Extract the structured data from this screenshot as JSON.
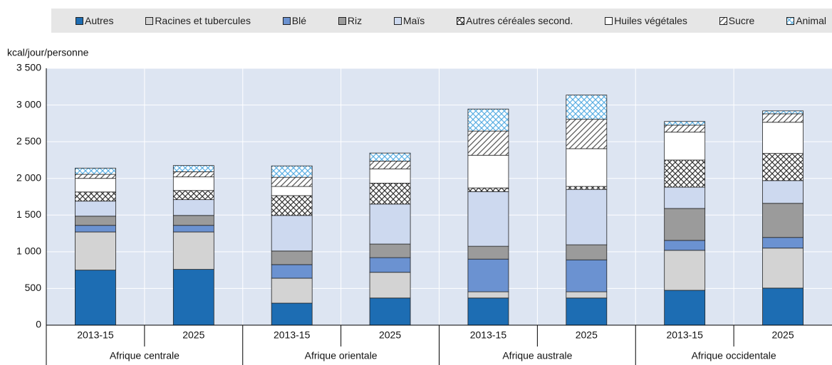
{
  "chart_data": {
    "type": "stacked_bar",
    "y_label": "kcal/jour/personne",
    "categories": [
      "2013-15",
      "2025",
      "2013-15",
      "2025",
      "2013-15",
      "2025",
      "2013-15",
      "2025"
    ],
    "groups": [
      "Afrique centrale",
      "Afrique orientale",
      "Afrique australe",
      "Afrique occidentale"
    ],
    "ylim": [
      0,
      3500
    ],
    "yticks": [
      0,
      500,
      {
        "value": 1000,
        "label": "1 000"
      },
      {
        "value": 1500,
        "label": "1 500"
      },
      {
        "value": 2000,
        "label": "2 000"
      },
      {
        "value": 2500,
        "label": "2 500"
      },
      {
        "value": 3000,
        "label": "3 000"
      },
      {
        "value": 3500,
        "label": "3 500"
      }
    ],
    "grid": true,
    "legend": "top",
    "series": [
      {
        "name": "Autres",
        "color": "#1d6db3",
        "values": [
          750,
          760,
          300,
          370,
          370,
          370,
          475,
          505
        ]
      },
      {
        "name": "Racines et tubercules",
        "color": "#d3d3d3",
        "values": [
          520,
          510,
          340,
          350,
          85,
          85,
          545,
          545
        ]
      },
      {
        "name": "Blé",
        "color": "#6b92d1",
        "values": [
          90,
          90,
          185,
          200,
          445,
          435,
          135,
          145
        ]
      },
      {
        "name": "Riz",
        "color": "#9b9b9b",
        "values": [
          125,
          135,
          185,
          185,
          175,
          205,
          435,
          465
        ]
      },
      {
        "name": "Maïs",
        "color": "#cdd9ef",
        "values": [
          205,
          215,
          485,
          545,
          745,
          755,
          290,
          310
        ]
      },
      {
        "name": "Autres céréales second.",
        "color": "#333333",
        "pattern": "crosshatch",
        "values": [
          125,
          125,
          270,
          285,
          50,
          40,
          370,
          370
        ]
      },
      {
        "name": "Huiles végétales",
        "color": "#ffffff",
        "values": [
          185,
          185,
          125,
          195,
          445,
          515,
          380,
          425
        ]
      },
      {
        "name": "Sucre",
        "color": "#555555",
        "pattern": "diagonal",
        "values": [
          55,
          70,
          125,
          105,
          330,
          400,
          95,
          115
        ]
      },
      {
        "name": "Animal",
        "color": "#5aaee3",
        "pattern": "crosshatch",
        "values": [
          85,
          85,
          155,
          110,
          300,
          330,
          50,
          40
        ]
      }
    ]
  }
}
